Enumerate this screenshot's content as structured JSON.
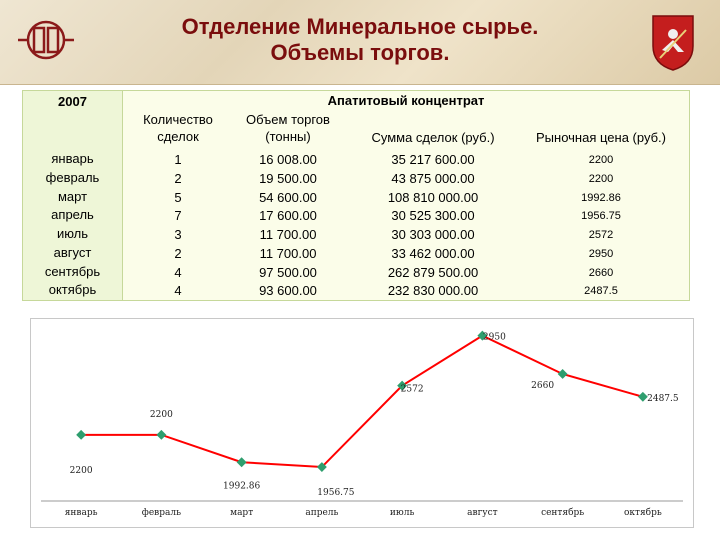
{
  "header": {
    "title_line1": "Отделение Минеральное сырье.",
    "title_line2": "Объемы торгов.",
    "logo_icon": "bank-logo-icon",
    "emblem_icon": "moscow-coat-of-arms-icon",
    "title_color": "#7a0d0d"
  },
  "table": {
    "year": "2007",
    "group_header": "Апатитовый концентрат",
    "columns": [
      "Количество сделок",
      "Объем торгов (тонны)",
      "Сумма сделок (руб.)",
      "Рыночная цена (руб.)"
    ],
    "rows": [
      {
        "month": "январь",
        "deals": "1",
        "volume": "16 008.00",
        "sum": "35 217 600.00",
        "price": "2200"
      },
      {
        "month": "февраль",
        "deals": "2",
        "volume": "19 500.00",
        "sum": "43 875 000.00",
        "price": "2200"
      },
      {
        "month": "март",
        "deals": "5",
        "volume": "54 600.00",
        "sum": "108 810 000.00",
        "price": "1992.86"
      },
      {
        "month": "апрель",
        "deals": "7",
        "volume": "17 600.00",
        "sum": "30 525 300.00",
        "price": "1956.75"
      },
      {
        "month": "июль",
        "deals": "3",
        "volume": "11 700.00",
        "sum": "30 303 000.00",
        "price": "2572"
      },
      {
        "month": "август",
        "deals": "2",
        "volume": "11 700.00",
        "sum": "33 462 000.00",
        "price": "2950"
      },
      {
        "month": "сентябрь",
        "deals": "4",
        "volume": "97 500.00",
        "sum": "262 879 500.00",
        "price": "2660"
      },
      {
        "month": "октябрь",
        "deals": "4",
        "volume": "93 600.00",
        "sum": "232 830 000.00",
        "price": "2487.5"
      }
    ]
  },
  "chart_data": {
    "type": "line",
    "categories": [
      "январь",
      "февраль",
      "март",
      "апрель",
      "июль",
      "август",
      "сентябрь",
      "октябрь"
    ],
    "series": [
      {
        "values": [
          2200,
          2200,
          1992.86,
          1956.75,
          2572,
          2950,
          2660,
          2487.5
        ],
        "labels": [
          "2200",
          "2200",
          "1992.86",
          "1956.75",
          "2572",
          "2950",
          "2660",
          "2487.5"
        ],
        "line_color": "#ff0000",
        "marker_color": "#2e9e6e"
      }
    ],
    "title": "",
    "xlabel": "",
    "ylabel": "",
    "ylim": [
      1700,
      3000
    ],
    "grid": false
  }
}
